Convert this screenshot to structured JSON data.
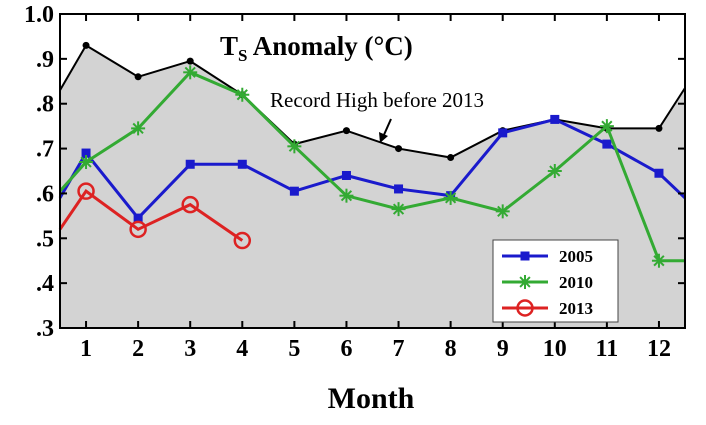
{
  "chart_data": {
    "type": "line",
    "title": "T",
    "title_subscript": "S",
    "title_suffix": " Anomaly (°C)",
    "xlabel": "Month",
    "ylabel": "",
    "xlim": [
      0.5,
      12.5
    ],
    "ylim": [
      0.3,
      1.0
    ],
    "x_ticks": [
      1,
      2,
      3,
      4,
      5,
      6,
      7,
      8,
      9,
      10,
      11,
      12
    ],
    "x_tick_labels": [
      "1",
      "2",
      "3",
      "4",
      "5",
      "6",
      "7",
      "8",
      "9",
      "10",
      "11",
      "12"
    ],
    "y_ticks": [
      0.3,
      0.4,
      0.5,
      0.6,
      0.7,
      0.8,
      0.9,
      1.0
    ],
    "y_tick_labels": [
      ".3",
      ".4",
      ".5",
      ".6",
      ".7",
      ".8",
      ".9",
      "1.0"
    ],
    "grid": false,
    "legend_position": "bottom-right",
    "record_high": {
      "label": "Record High before 2013",
      "fill_color": "#d3d3d3",
      "line_color": "#000000",
      "x": [
        0.5,
        1,
        2,
        3,
        4,
        5,
        6,
        7,
        8,
        9,
        10,
        11,
        12,
        12.5
      ],
      "y": [
        0.83,
        0.93,
        0.86,
        0.895,
        0.82,
        0.71,
        0.74,
        0.7,
        0.68,
        0.74,
        0.765,
        0.745,
        0.745,
        0.835
      ]
    },
    "series": [
      {
        "name": "2005",
        "color": "#1a1acc",
        "marker": "square",
        "x": [
          0.5,
          1,
          2,
          3,
          4,
          5,
          6,
          7,
          8,
          9,
          10,
          11,
          12,
          12.5
        ],
        "y": [
          0.59,
          0.69,
          0.545,
          0.665,
          0.665,
          0.605,
          0.64,
          0.61,
          0.595,
          0.735,
          0.765,
          0.71,
          0.645,
          0.59
        ]
      },
      {
        "name": "2010",
        "color": "#33aa33",
        "marker": "asterisk",
        "x": [
          0.5,
          1,
          2,
          3,
          4,
          5,
          6,
          7,
          8,
          9,
          10,
          11,
          12,
          12.5
        ],
        "y": [
          0.605,
          0.67,
          0.745,
          0.87,
          0.82,
          0.705,
          0.595,
          0.565,
          0.59,
          0.56,
          0.65,
          0.75,
          0.45,
          0.45
        ]
      },
      {
        "name": "2013",
        "color": "#dd2222",
        "marker": "circle",
        "x": [
          0.5,
          1,
          2,
          3,
          4
        ],
        "y": [
          0.52,
          0.605,
          0.52,
          0.575,
          0.495
        ]
      }
    ]
  }
}
